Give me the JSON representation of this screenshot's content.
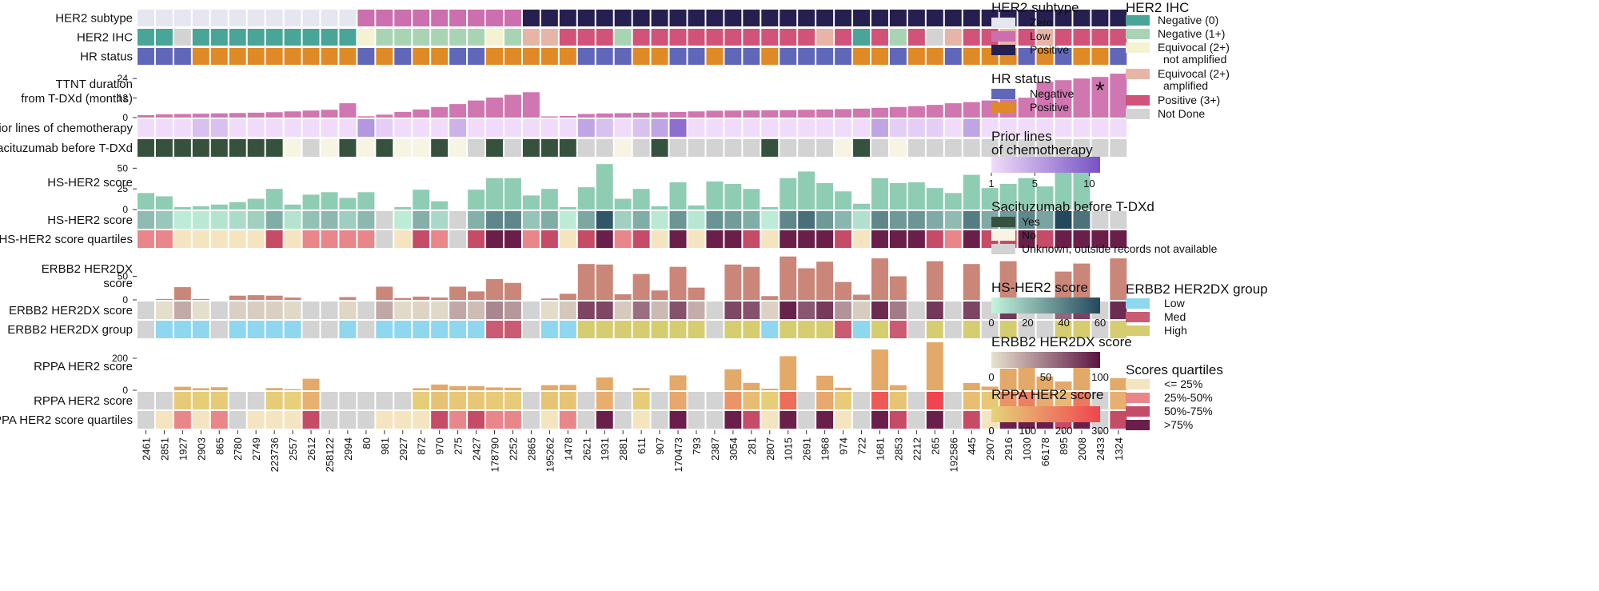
{
  "chart_data": {
    "type": "heatmap",
    "samples": [
      "2461",
      "2851",
      "1927",
      "2903",
      "865",
      "2780",
      "2749",
      "223736",
      "2557",
      "2612",
      "258122",
      "2994",
      "80",
      "981",
      "2927",
      "872",
      "970",
      "275",
      "2427",
      "178790",
      "2252",
      "2865",
      "195262",
      "1478",
      "2621",
      "1931",
      "2881",
      "611",
      "907",
      "170473",
      "793",
      "2387",
      "3054",
      "281",
      "2807",
      "1015",
      "2691",
      "1968",
      "974",
      "722",
      "1681",
      "2853",
      "2212",
      "265",
      "192586",
      "445",
      "2907",
      "2916",
      "1030",
      "66178",
      "895",
      "2008",
      "2433",
      "1324"
    ],
    "her2_subtype": {
      "label": "HER2 subtype",
      "values": [
        "Zero",
        "Zero",
        "Zero",
        "Zero",
        "Zero",
        "Zero",
        "Zero",
        "Zero",
        "Zero",
        "Zero",
        "Zero",
        "Zero",
        "Low",
        "Low",
        "Low",
        "Low",
        "Low",
        "Low",
        "Low",
        "Low",
        "Low",
        "Positive",
        "Positive",
        "Positive",
        "Positive",
        "Positive",
        "Positive",
        "Positive",
        "Positive",
        "Positive",
        "Positive",
        "Positive",
        "Positive",
        "Positive",
        "Positive",
        "Positive",
        "Positive",
        "Positive",
        "Positive",
        "Positive",
        "Positive",
        "Positive",
        "Positive",
        "Positive",
        "Positive",
        "Positive",
        "Positive",
        "Positive",
        "Positive",
        "Positive",
        "Positive",
        "Positive",
        "Positive",
        "Positive"
      ]
    },
    "her2_ihc": {
      "label": "HER2 IHC",
      "values": [
        "Negative (0)",
        "Negative (0)",
        "Not Done",
        "Negative (0)",
        "Negative (0)",
        "Negative (0)",
        "Negative (0)",
        "Negative (0)",
        "Negative (0)",
        "Negative (0)",
        "Negative (0)",
        "Negative (0)",
        "Equivocal (2+) not amplified",
        "Negative (1+)",
        "Negative (1+)",
        "Negative (1+)",
        "Negative (1+)",
        "Negative (1+)",
        "Negative (1+)",
        "Equivocal (2+) not amplified",
        "Negative (1+)",
        "Equivocal (2+) amplified",
        "Equivocal (2+) amplified",
        "Positive (3+)",
        "Positive (3+)",
        "Positive (3+)",
        "Negative (1+)",
        "Positive (3+)",
        "Positive (3+)",
        "Positive (3+)",
        "Positive (3+)",
        "Positive (3+)",
        "Positive (3+)",
        "Positive (3+)",
        "Positive (3+)",
        "Positive (3+)",
        "Positive (3+)",
        "Equivocal (2+) amplified",
        "Positive (3+)",
        "Negative (0)",
        "Positive (3+)",
        "Negative (1+)",
        "Positive (3+)",
        "Not Done",
        "Equivocal (2+) amplified",
        "Positive (3+)",
        "Positive (3+)",
        "Equivocal (2+) amplified",
        "Positive (3+)",
        "Equivocal (2+) amplified",
        "Positive (3+)",
        "Positive (3+)",
        "Positive (3+)",
        "Positive (3+)"
      ]
    },
    "hr_status": {
      "label": "HR status",
      "values": [
        "Negative",
        "Negative",
        "Negative",
        "Positive",
        "Positive",
        "Positive",
        "Positive",
        "Positive",
        "Positive",
        "Positive",
        "Positive",
        "Positive",
        "Negative",
        "Positive",
        "Negative",
        "Positive",
        "Positive",
        "Negative",
        "Negative",
        "Positive",
        "Positive",
        "Positive",
        "Positive",
        "Positive",
        "Negative",
        "Negative",
        "Negative",
        "Positive",
        "Positive",
        "Negative",
        "Negative",
        "Positive",
        "Negative",
        "Negative",
        "Positive",
        "Negative",
        "Negative",
        "Negative",
        "Negative",
        "Positive",
        "Positive",
        "Negative",
        "Positive",
        "Positive",
        "Negative",
        "Positive",
        "Positive",
        "Positive",
        "Negative",
        "Positive",
        "Negative",
        "Positive",
        "Positive",
        "Negative"
      ]
    },
    "ttnt": {
      "label_line1": "TTNT duration",
      "label_line2": "from T-DXd (months)",
      "ylim": [
        0,
        30
      ],
      "ticks": [
        0,
        12,
        24
      ],
      "annotation": "*",
      "annotation_sample": "2433",
      "values": [
        1.5,
        2.0,
        2.2,
        2.4,
        2.6,
        2.8,
        3.0,
        3.3,
        3.8,
        4.3,
        4.8,
        8.8,
        0.8,
        1.8,
        3.5,
        5.0,
        6.5,
        8.3,
        10.5,
        12.3,
        14.0,
        15.6,
        0.7,
        1.0,
        2.2,
        2.5,
        2.7,
        3.0,
        3.3,
        3.5,
        3.8,
        4.2,
        4.3,
        4.4,
        4.5,
        4.6,
        4.8,
        5.0,
        5.2,
        5.5,
        6.0,
        6.5,
        7.0,
        7.8,
        8.8,
        9.5,
        10.5,
        11.2,
        12.2,
        22.0,
        23.0,
        24.0,
        25.0,
        27.0
      ]
    },
    "prior_lines": {
      "label": "Prior lines of chemotherapy",
      "range": [
        1,
        11
      ],
      "values": [
        1,
        1,
        1,
        3,
        3,
        1,
        1,
        1,
        1,
        1,
        1,
        1,
        6,
        2,
        1,
        1,
        1,
        4,
        1,
        1,
        1,
        1,
        1,
        1,
        5,
        3,
        1,
        3,
        5,
        9,
        1,
        1,
        1,
        1,
        1,
        1,
        1,
        1,
        1,
        1,
        5,
        2,
        2,
        2,
        1,
        5,
        1,
        1,
        1,
        1,
        1,
        1,
        1,
        1
      ]
    },
    "sacituzumab": {
      "label": "Sacituzumab before T-DXd",
      "values": [
        "Yes",
        "Yes",
        "Yes",
        "Yes",
        "Yes",
        "Yes",
        "Yes",
        "Yes",
        "No",
        "Unknown",
        "No",
        "Yes",
        "No",
        "Yes",
        "No",
        "No",
        "Yes",
        "No",
        "Unknown",
        "Yes",
        "Unknown",
        "Yes",
        "Yes",
        "Yes",
        "Unknown",
        "Unknown",
        "No",
        "Unknown",
        "Yes",
        "Unknown",
        "Unknown",
        "Unknown",
        "Unknown",
        "Unknown",
        "Yes",
        "Unknown",
        "Unknown",
        "Unknown",
        "No",
        "Yes",
        "Unknown",
        "No",
        "Unknown",
        "Unknown",
        "Unknown",
        "Unknown",
        "Unknown",
        "Unknown",
        "Unknown",
        "Unknown",
        "Unknown",
        "Unknown",
        "Unknown",
        "Unknown"
      ]
    },
    "hs_her2_score": {
      "label": "HS-HER2 score",
      "ylim": [
        0,
        60
      ],
      "ticks": [
        0,
        25,
        50
      ],
      "values": [
        20,
        16,
        3,
        4,
        6,
        9,
        13,
        25,
        6,
        18,
        21,
        14,
        21,
        0,
        3,
        24,
        10,
        0,
        24,
        38,
        38,
        17,
        25,
        3,
        27,
        55,
        13,
        25,
        4,
        33,
        5,
        34,
        31,
        25,
        3,
        38,
        46,
        32,
        22,
        7,
        38,
        32,
        33,
        26,
        20,
        42,
        26,
        31,
        38,
        28,
        60,
        45,
        0,
        0
      ]
    },
    "hs_her2_quartile": {
      "label": "HS-HER2 score quartiles",
      "values": [
        "25%-50%",
        "25%-50%",
        "<= 25%",
        "<= 25%",
        "<= 25%",
        "<= 25%",
        "<= 25%",
        "50%-75%",
        "<= 25%",
        "25%-50%",
        "25%-50%",
        "25%-50%",
        "25%-50%",
        "NA",
        "<= 25%",
        "50%-75%",
        "25%-50%",
        "NA",
        "50%-75%",
        ">75%",
        ">75%",
        "25%-50%",
        "50%-75%",
        "<= 25%",
        "50%-75%",
        ">75%",
        "25%-50%",
        "50%-75%",
        "<= 25%",
        ">75%",
        "<= 25%",
        ">75%",
        ">75%",
        "50%-75%",
        "<= 25%",
        ">75%",
        ">75%",
        ">75%",
        "50%-75%",
        "<= 25%",
        ">75%",
        ">75%",
        ">75%",
        "50%-75%",
        "25%-50%",
        ">75%",
        "50%-75%",
        "50%-75%",
        ">75%",
        "50%-75%",
        ">75%",
        ">75%",
        ">75%",
        ">75%"
      ]
    },
    "erbb2_score": {
      "label_line1": "ERBB2 HER2DX",
      "label_line2": "score",
      "ylim": [
        0,
        100
      ],
      "ticks": [
        0,
        50
      ],
      "values": [
        0,
        2,
        27,
        2,
        0,
        9,
        10,
        9,
        5,
        0,
        0,
        6,
        0,
        28,
        4,
        7,
        5,
        28,
        18,
        44,
        36,
        0,
        3,
        13,
        76,
        75,
        12,
        55,
        20,
        70,
        26,
        0,
        75,
        70,
        8,
        92,
        67,
        81,
        38,
        11,
        88,
        50,
        0,
        82,
        0,
        76,
        0,
        82,
        0,
        0,
        60,
        77,
        0,
        88
      ]
    },
    "erbb2_group": {
      "label": "ERBB2 HER2DX group",
      "values": [
        "NA",
        "Low",
        "Low",
        "Low",
        "NA",
        "Low",
        "Low",
        "Low",
        "Low",
        "NA",
        "NA",
        "Low",
        "NA",
        "Low",
        "Low",
        "Low",
        "Low",
        "Low",
        "Low",
        "Med",
        "Med",
        "NA",
        "Low",
        "Low",
        "High",
        "High",
        "High",
        "High",
        "High",
        "High",
        "High",
        "NA",
        "High",
        "High",
        "Low",
        "High",
        "High",
        "High",
        "Med",
        "Low",
        "High",
        "Med",
        "NA",
        "High",
        "NA",
        "High",
        "NA",
        "High",
        "NA",
        "NA",
        "High",
        "High",
        "NA",
        "High"
      ]
    },
    "rppa_score": {
      "label": "RPPA HER2 score",
      "ylim": [
        0,
        300
      ],
      "ticks": [
        0,
        200
      ],
      "values": [
        0,
        0,
        22,
        13,
        19,
        0,
        0,
        14,
        7,
        72,
        0,
        0,
        0,
        0,
        0,
        13,
        36,
        26,
        26,
        18,
        16,
        0,
        32,
        34,
        0,
        80,
        0,
        14,
        0,
        93,
        0,
        0,
        131,
        46,
        10,
        213,
        0,
        91,
        16,
        0,
        255,
        32,
        0,
        300,
        0,
        45,
        23,
        135,
        175,
        86,
        55,
        190,
        0,
        75
      ]
    },
    "rppa_quartile": {
      "label": "RPPA HER2 score quartiles",
      "values": [
        "NA",
        "<= 25%",
        "25%-50%",
        "<= 25%",
        "25%-50%",
        "NA",
        "<= 25%",
        "<= 25%",
        "<= 25%",
        "50%-75%",
        "NA",
        "NA",
        "NA",
        "<= 25%",
        "<= 25%",
        "<= 25%",
        "50%-75%",
        "25%-50%",
        "50%-75%",
        "25%-50%",
        "25%-50%",
        "NA",
        "<= 25%",
        "25%-50%",
        "NA",
        ">75%",
        "NA",
        "<= 25%",
        "NA",
        ">75%",
        "NA",
        "NA",
        ">75%",
        "50%-75%",
        "<= 25%",
        ">75%",
        "NA",
        ">75%",
        "<= 25%",
        "NA",
        ">75%",
        "50%-75%",
        "NA",
        ">75%",
        "NA",
        "50%-75%",
        "<= 25%",
        ">75%",
        ">75%",
        ">75%",
        "50%-75%",
        ">75%",
        "NA",
        "50%-75%"
      ]
    },
    "legends": {
      "her2_subtype": {
        "title": "HER2 subtype",
        "items": [
          {
            "label": "Zero",
            "color": "#e6e6f0"
          },
          {
            "label": "Low",
            "color": "#cc6fae"
          },
          {
            "label": "Positive",
            "color": "#262050"
          }
        ]
      },
      "hr_status": {
        "title": "HR status",
        "items": [
          {
            "label": "Negative",
            "color": "#6167b8"
          },
          {
            "label": "Positive",
            "color": "#df8a26"
          }
        ]
      },
      "prior_lines": {
        "title_line1": "Prior lines",
        "title_line2": "of chemotherapy",
        "ticks": [
          "1",
          "5",
          "10"
        ],
        "color_low": "#f0dcfa",
        "color_high": "#7652c4"
      },
      "sacituzumab": {
        "title": "Sacituzumab before T-DXd",
        "items": [
          {
            "label": "Yes",
            "color": "#37513f"
          },
          {
            "label": "No",
            "color": "#f8f4e3"
          },
          {
            "label": "Unknown, outside records not available",
            "color": "#d3d3d3"
          }
        ]
      },
      "hs_her2": {
        "title": "HS-HER2 score",
        "ticks": [
          "0",
          "20",
          "40",
          "60"
        ],
        "color_low": "#c4f5dd",
        "color_high": "#24485c"
      },
      "erbb2_score": {
        "title": "ERBB2 HER2DX score",
        "ticks": [
          "0",
          "50",
          "100"
        ],
        "color_low": "#e7e2cf",
        "color_high": "#5b1340"
      },
      "rppa": {
        "title": "RPPA HER2 score",
        "ticks": [
          "0",
          "100",
          "200",
          "300"
        ],
        "color_low": "#e6d37a",
        "color_high": "#f0444e"
      },
      "her2_ihc": {
        "title": "HER2 IHC",
        "items": [
          {
            "label": "Negative (0)",
            "color": "#48a598"
          },
          {
            "label": "Negative (1+)",
            "color": "#a8d4b3"
          },
          {
            "label": "Equivocal (2+)",
            "label2": "not amplified",
            "color": "#f4f2d0"
          },
          {
            "label": "Equivocal (2+)",
            "label2": "amplified",
            "color": "#e6b5a6"
          },
          {
            "label": "Positive (3+)",
            "color": "#d1537a"
          },
          {
            "label": "Not Done",
            "color": "#d3d3d3"
          }
        ]
      },
      "erbb2_group": {
        "title": "ERBB2 HER2DX group",
        "items": [
          {
            "label": "Low",
            "color": "#8fd6ef"
          },
          {
            "label": "Med",
            "color": "#c95b72"
          },
          {
            "label": "High",
            "color": "#d6cd70"
          }
        ]
      },
      "quartiles": {
        "title": "Scores quartiles",
        "items": [
          {
            "label": "<= 25%",
            "color": "#f4e5c0"
          },
          {
            "label": "25%-50%",
            "color": "#e8868a"
          },
          {
            "label": "50%-75%",
            "color": "#c64b67"
          },
          {
            "label": ">75%",
            "color": "#6a1f4a"
          }
        ]
      }
    },
    "colors": {
      "na": "#d3d3d3",
      "ttnt_bar": "#d076b1",
      "hs_bar": "#8fccb4",
      "erbb2_bar": "#c98679",
      "rppa_bar": "#e3a968"
    }
  }
}
